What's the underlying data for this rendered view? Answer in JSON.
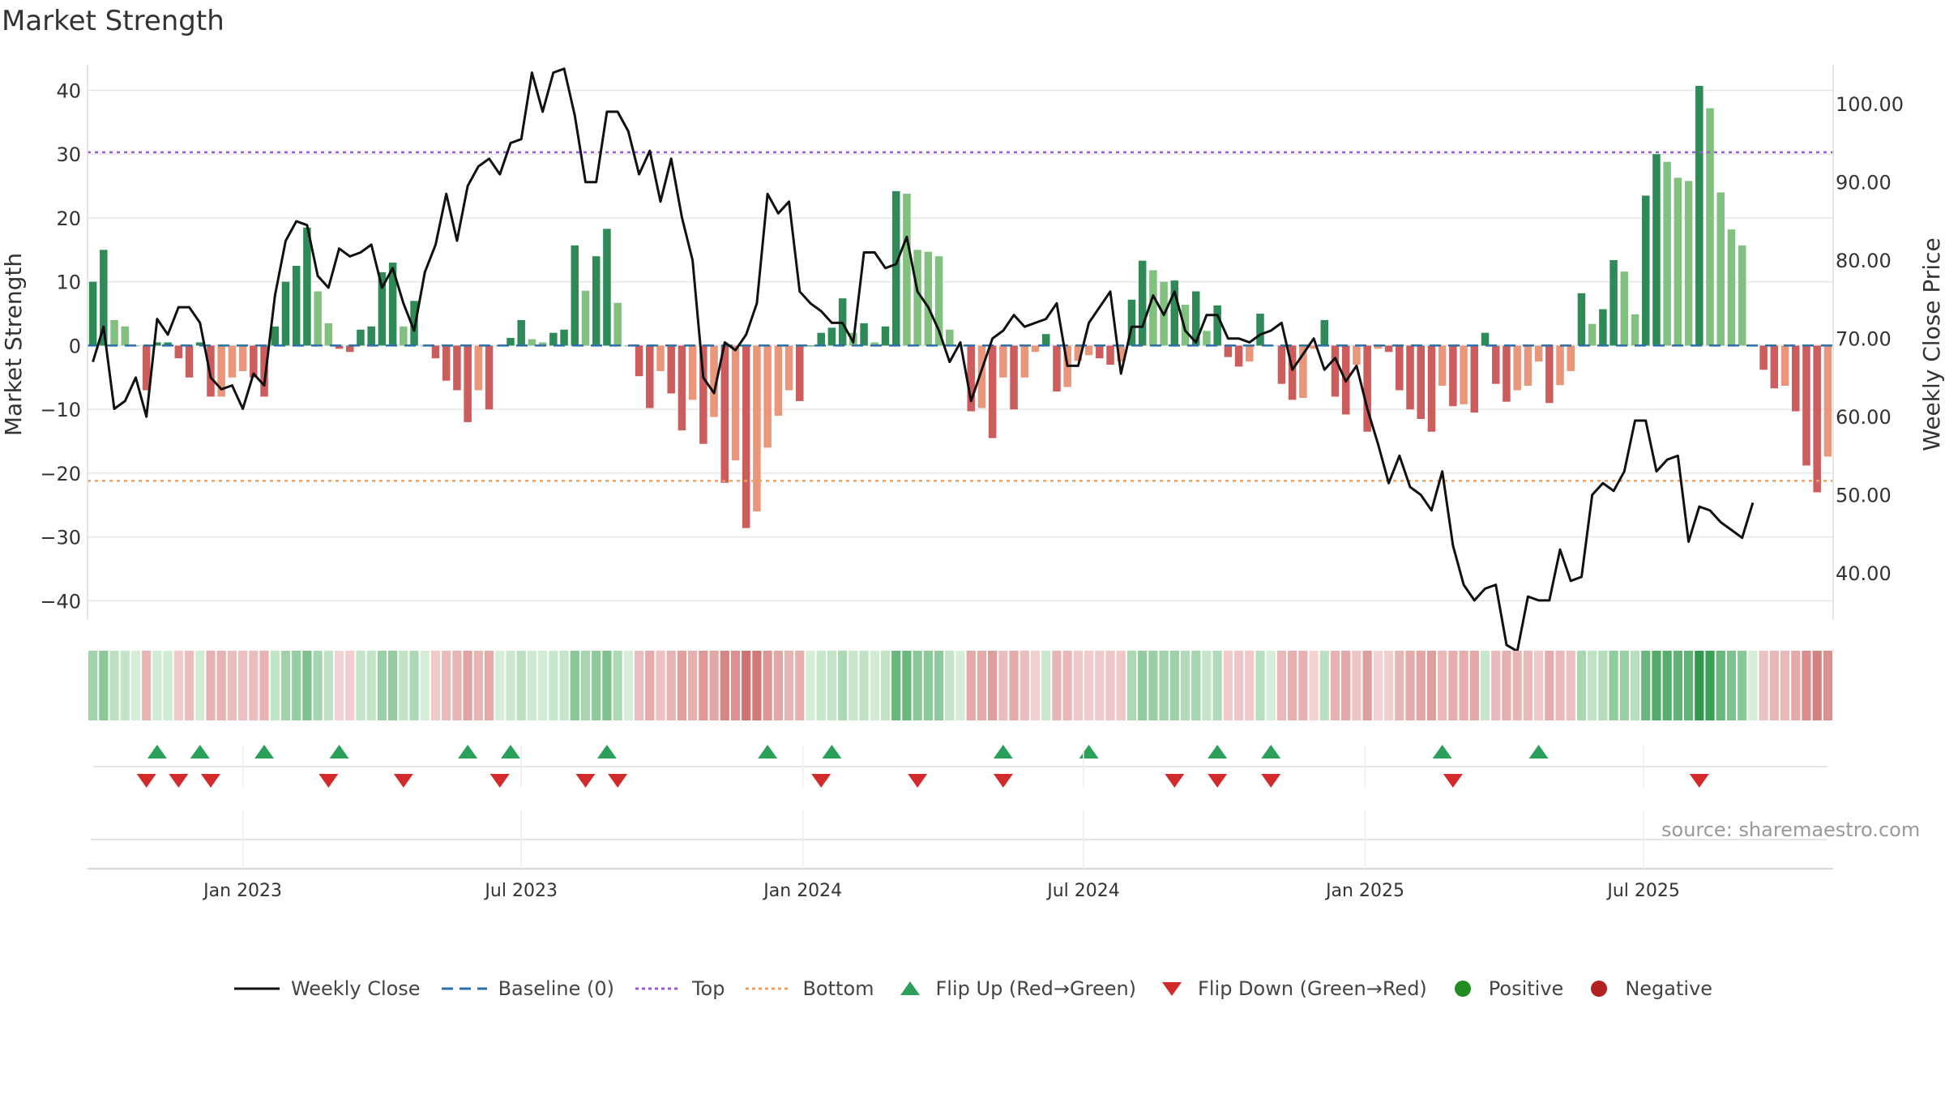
{
  "title": "Market Strength",
  "source": "source: sharemaestro.com",
  "colors": {
    "pos_dark": "#2e8b57",
    "pos_light": "#82c080",
    "neg_dark": "#cd5c5c",
    "neg_light": "#e9967a",
    "price_line": "#111111",
    "baseline": "#2a6fa8",
    "top_line": "#9b59d6",
    "bottom_line": "#f0a060",
    "flip_up": "#2aa05a",
    "flip_down": "#d22a2a",
    "positive": "#228b22",
    "negative": "#b22222"
  },
  "legend": {
    "weekly_close": "Weekly Close",
    "baseline": "Baseline (0)",
    "top": "Top",
    "bottom": "Bottom",
    "flip_up": "Flip Up (Red→Green)",
    "flip_down": "Flip Down (Green→Red)",
    "positive": "Positive",
    "negative": "Negative"
  },
  "chart_data": {
    "type": "bar",
    "title": "Market Strength",
    "ylabel": "Market Strength",
    "y2label": "Weekly Close Price",
    "ylim": [
      -43,
      44
    ],
    "y2lim": [
      34,
      105
    ],
    "yticks": [
      40,
      30,
      20,
      10,
      0,
      -10,
      -20,
      -30,
      -40
    ],
    "ytick_labels": [
      "40",
      "30",
      "20",
      "10",
      "0",
      "−10",
      "−20",
      "−30",
      "−40"
    ],
    "y2ticks": [
      100,
      90,
      80,
      70,
      60,
      50,
      40
    ],
    "y2tick_labels": [
      "100.00",
      "90.00",
      "80.00",
      "70.00",
      "60.00",
      "50.00",
      "40.00"
    ],
    "x_ticks": [
      {
        "label": "Jan 2023",
        "index": 14.5
      },
      {
        "label": "Jul 2023",
        "index": 40.5
      },
      {
        "label": "Jan 2024",
        "index": 66.8
      },
      {
        "label": "Jul 2024",
        "index": 93
      },
      {
        "label": "Jan 2025",
        "index": 119.3
      },
      {
        "label": "Jul 2025",
        "index": 145.3
      }
    ],
    "top_level": 30.3,
    "bottom_level": -21.2,
    "grid": true,
    "legend_position": "bottom",
    "series": [
      {
        "name": "Market Strength",
        "values": [
          10,
          15,
          4,
          3,
          0,
          -7,
          0.5,
          0.5,
          -2,
          -5,
          0.5,
          -8,
          -8,
          -5,
          -4,
          -5,
          -8,
          3,
          10,
          12.5,
          18.5,
          8.5,
          3.5,
          -0.5,
          -1,
          2.5,
          3,
          11.5,
          13,
          3,
          7,
          0,
          -2,
          -5.5,
          -7,
          -12,
          -7,
          -10,
          0,
          1.2,
          4,
          1,
          0.5,
          2,
          2.5,
          15.7,
          8.6,
          14,
          18.3,
          6.7,
          0,
          -4.8,
          -9.8,
          -4,
          -7.5,
          -13.3,
          -8.5,
          -15.4,
          -11.2,
          -21.5,
          -18,
          -28.6,
          -26,
          -16,
          -11,
          -7,
          -8.7,
          0,
          2,
          2.8,
          7.4,
          2,
          3.5,
          0.5,
          3,
          24.2,
          23.8,
          15,
          14.7,
          14,
          2.5,
          0,
          -10.3,
          -9.8,
          -14.5,
          -5,
          -10,
          -5,
          -1,
          1.8,
          -7.2,
          -6.5,
          -2.4,
          -1.5,
          -2,
          -3,
          -2.5,
          7.2,
          13.3,
          11.8,
          10,
          10.2,
          6.4,
          8.5,
          2.3,
          6.3,
          -1.8,
          -3.3,
          -2.5,
          5,
          0,
          -6,
          -8.5,
          -8.2,
          -0.5,
          4,
          -8,
          -10.8,
          -3,
          -13.5,
          -0.5,
          -1,
          -7,
          -10,
          -11.5,
          -13.5,
          -6.3,
          -9.5,
          -9.2,
          -10.5,
          2,
          -6,
          -8.8,
          -7,
          -6.3,
          -2.5,
          -9,
          -6.2,
          -4,
          8.2,
          3.4,
          5.7,
          13.4,
          11.6,
          4.9,
          23.5,
          30,
          28.8,
          26.3,
          25.8,
          40.7,
          37.2,
          24,
          18.2,
          15.7,
          0,
          -3.8,
          -6.7,
          -6.3,
          -10.3,
          -18.8,
          -23,
          -17.4
        ]
      },
      {
        "name": "Weekly Close",
        "values": [
          67,
          71.5,
          61,
          62,
          65,
          60,
          72.5,
          70.5,
          74,
          74,
          72,
          65,
          63.5,
          64,
          61,
          65.5,
          64,
          75.5,
          82.5,
          85,
          84.5,
          78,
          76.5,
          81.5,
          80.5,
          81,
          82,
          76.5,
          79,
          74.5,
          71,
          78.5,
          82,
          88.5,
          82.5,
          89.5,
          92,
          93,
          91,
          95,
          95.5,
          104,
          99,
          104,
          104.5,
          98.5,
          90,
          90,
          99,
          99,
          96.5,
          91,
          94,
          87.5,
          93,
          85.5,
          80,
          65,
          63,
          69.5,
          68.5,
          70.5,
          74.5,
          88.5,
          86,
          87.5,
          76,
          74.5,
          73.5,
          72,
          72,
          69.5,
          81,
          81,
          79,
          79.5,
          83,
          76,
          74,
          71,
          67,
          69.5,
          62,
          66,
          70,
          71,
          73,
          71.5,
          72,
          72.5,
          74.5,
          66.5,
          66.5,
          72,
          74,
          76,
          65.5,
          71.5,
          71.5,
          75.5,
          73,
          76,
          71,
          69.5,
          73,
          73,
          70,
          70,
          69.5,
          70.5,
          71,
          72,
          66,
          68,
          70,
          66,
          67.5,
          64.5,
          66.5,
          61,
          56.5,
          51.5,
          55,
          51,
          50,
          48,
          53,
          43.5,
          38.5,
          36.5,
          38,
          38.5,
          30.8,
          30,
          37,
          36.5,
          36.5,
          43,
          39,
          39.5,
          50,
          51.5,
          50.5,
          53,
          59.5,
          59.5,
          53,
          54.5,
          55,
          44,
          48.5,
          48,
          46.5,
          45.5,
          44.5,
          49
        ]
      }
    ],
    "flip_up_indices": [
      6,
      10,
      16,
      23,
      35,
      39,
      48,
      63,
      69,
      85,
      93,
      105,
      110,
      126,
      135
    ],
    "flip_down_indices": [
      5,
      8,
      11,
      22,
      29,
      38,
      46,
      49,
      68,
      77,
      85,
      101,
      105,
      110,
      127,
      150
    ],
    "strength_strip": {
      "name": "Strength Strip",
      "values": [
        10,
        15,
        4,
        3,
        0,
        -7,
        0.5,
        0.5,
        -2,
        -5,
        0.5,
        -8,
        -8,
        -5,
        -4,
        -5,
        -8,
        3,
        10,
        12.5,
        18.5,
        8.5,
        3.5,
        -0.5,
        -1,
        2.5,
        3,
        11.5,
        13,
        3,
        7,
        0,
        -2,
        -5.5,
        -7,
        -12,
        -7,
        -10,
        0,
        1.2,
        4,
        1,
        0.5,
        2,
        2.5,
        15.7,
        8.6,
        14,
        18.3,
        6.7,
        0,
        -4.8,
        -9.8,
        -4,
        -7.5,
        -13.3,
        -8.5,
        -15.4,
        -11.2,
        -21.5,
        -18,
        -28.6,
        -26,
        -16,
        -11,
        -7,
        -8.7,
        0,
        2,
        2.8,
        7.4,
        2,
        3.5,
        0.5,
        3,
        24.2,
        23.8,
        15,
        14.7,
        14,
        2.5,
        0,
        -10.3,
        -9.8,
        -14.5,
        -5,
        -10,
        -5,
        -1,
        1.8,
        -7.2,
        -6.5,
        -2.4,
        -1.5,
        -2,
        -3,
        -2.5,
        7.2,
        13.3,
        11.8,
        10,
        10.2,
        6.4,
        8.5,
        2.3,
        6.3,
        -1.8,
        -3.3,
        -2.5,
        5,
        0,
        -6,
        -8.5,
        -8.2,
        -0.5,
        4,
        -8,
        -10.8,
        -3,
        -13.5,
        -0.5,
        -1,
        -7,
        -10,
        -11.5,
        -13.5,
        -6.3,
        -9.5,
        -9.2,
        -10.5,
        2,
        -6,
        -8.8,
        -7,
        -6.3,
        -2.5,
        -9,
        -6.2,
        -4,
        8.2,
        3.4,
        5.7,
        13.4,
        11.6,
        4.9,
        23.5,
        30,
        28.8,
        26.3,
        25.8,
        40.7,
        37.2,
        24,
        18.2,
        15.7,
        0,
        -3.8,
        -6.7,
        -6.3,
        -10.3,
        -18.8,
        -23,
        -17.4
      ]
    }
  }
}
